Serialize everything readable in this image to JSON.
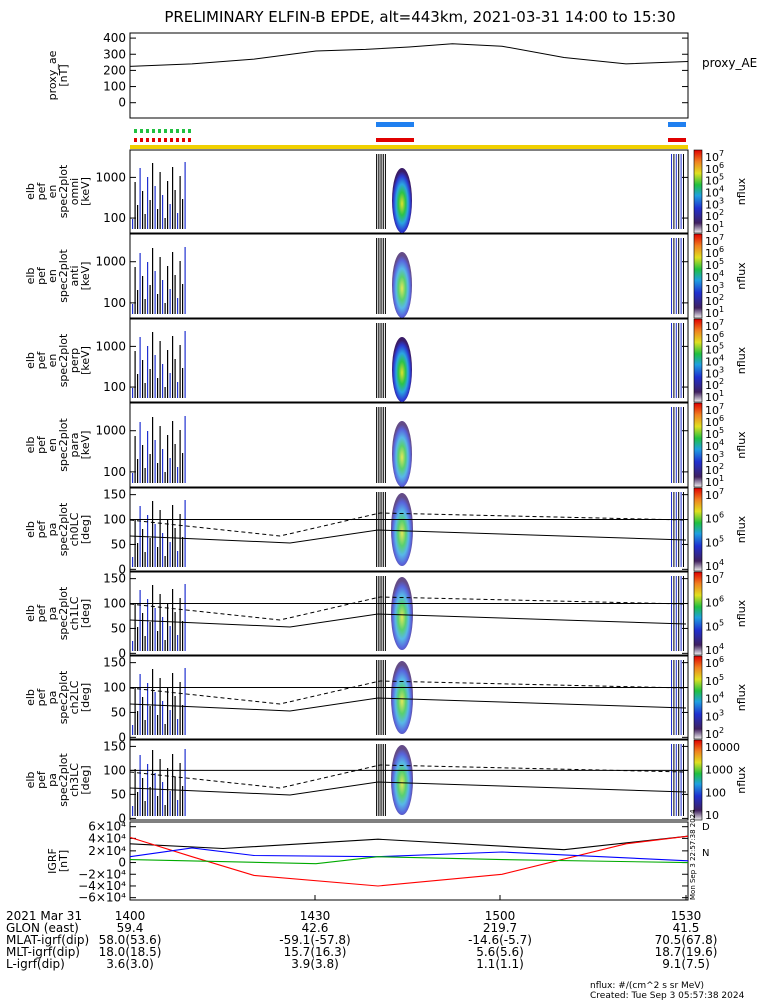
{
  "title": "PRELIMINARY ELFIN-B EPDE, alt=443km, 2021-03-31 14:00 to 15:30",
  "panels": [
    {
      "key": "proxy_ae",
      "ylabel": [
        "proxy_ae",
        "[nT]"
      ],
      "yticks": [
        "400",
        "300",
        "200",
        "100",
        "0"
      ],
      "side_label": "proxy_AE"
    },
    {
      "key": "en_omni",
      "ylabel": [
        "elb",
        "pef",
        "en",
        "spec2plot",
        "omni",
        "[keV]"
      ],
      "yticks": [
        "1000",
        "100"
      ],
      "cb_unit": "nflux",
      "cb_ticks": [
        "10",
        "10",
        "10",
        "10",
        "10",
        "10",
        "10"
      ],
      "cb_exps": [
        "7",
        "6",
        "5",
        "4",
        "3",
        "2",
        "1"
      ]
    },
    {
      "key": "en_anti",
      "ylabel": [
        "elb",
        "pef",
        "en",
        "spec2plot",
        "anti",
        "[keV]"
      ],
      "yticks": [
        "1000",
        "100"
      ],
      "cb_unit": "nflux",
      "cb_ticks": [
        "10",
        "10",
        "10",
        "10",
        "10",
        "10",
        "10"
      ],
      "cb_exps": [
        "7",
        "6",
        "5",
        "4",
        "3",
        "2",
        "1"
      ]
    },
    {
      "key": "en_perp",
      "ylabel": [
        "elb",
        "pef",
        "en",
        "spec2plot",
        "perp",
        "[keV]"
      ],
      "yticks": [
        "1000",
        "100"
      ],
      "cb_unit": "nflux",
      "cb_ticks": [
        "10",
        "10",
        "10",
        "10",
        "10",
        "10",
        "10"
      ],
      "cb_exps": [
        "7",
        "6",
        "5",
        "4",
        "3",
        "2",
        "1"
      ]
    },
    {
      "key": "en_para",
      "ylabel": [
        "elb",
        "pef",
        "en",
        "spec2plot",
        "para",
        "[keV]"
      ],
      "yticks": [
        "1000",
        "100"
      ],
      "cb_unit": "nflux",
      "cb_ticks": [
        "10",
        "10",
        "10",
        "10",
        "10",
        "10",
        "10"
      ],
      "cb_exps": [
        "7",
        "6",
        "5",
        "4",
        "3",
        "2",
        "1"
      ]
    },
    {
      "key": "pa_ch0",
      "ylabel": [
        "elb",
        "pef",
        "pa",
        "spec2plot",
        "ch0LC",
        "[deg]"
      ],
      "yticks": [
        "150",
        "100",
        "50",
        "0"
      ],
      "cb_unit": "nflux",
      "cb_ticks": [
        "10",
        "10",
        "10",
        "10"
      ],
      "cb_exps": [
        "7",
        "6",
        "5",
        "4"
      ]
    },
    {
      "key": "pa_ch1",
      "ylabel": [
        "elb",
        "pef",
        "pa",
        "spec2plot",
        "ch1LC",
        "[deg]"
      ],
      "yticks": [
        "150",
        "100",
        "50",
        "0"
      ],
      "cb_unit": "nflux",
      "cb_ticks": [
        "10",
        "10",
        "10",
        "10"
      ],
      "cb_exps": [
        "7",
        "6",
        "5",
        "4"
      ]
    },
    {
      "key": "pa_ch2",
      "ylabel": [
        "elb",
        "pef",
        "pa",
        "spec2plot",
        "ch2LC",
        "[deg]"
      ],
      "yticks": [
        "150",
        "100",
        "50",
        "0"
      ],
      "cb_unit": "nflux",
      "cb_ticks": [
        "10",
        "10",
        "10",
        "10",
        "10"
      ],
      "cb_exps": [
        "6",
        "5",
        "4",
        "3",
        "2"
      ]
    },
    {
      "key": "pa_ch3",
      "ylabel": [
        "elb",
        "pef",
        "pa",
        "spec2plot",
        "ch3LC",
        "[deg]"
      ],
      "yticks": [
        "150",
        "100",
        "50",
        "0"
      ],
      "cb_unit": "nflux",
      "cb_ticks": [
        "10000",
        "1000",
        "100",
        "10"
      ],
      "cb_exps": [
        "",
        "",
        "",
        ""
      ]
    },
    {
      "key": "igrf",
      "ylabel": [
        "IGRF",
        "[nT]"
      ],
      "yticks": [
        "6×10⁴",
        "4×10⁴",
        "2×10⁴",
        "0",
        "−2×10⁴",
        "−4×10⁴",
        "−6×10⁴"
      ],
      "legend": [
        "D",
        "N"
      ]
    }
  ],
  "footer": {
    "rows": [
      {
        "label": "2021 Mar 31",
        "values": [
          "1400",
          "1430",
          "1500",
          "1530"
        ]
      },
      {
        "label": "GLON (east)",
        "values": [
          "59.4",
          "42.6",
          "219.7",
          "41.5"
        ]
      },
      {
        "label": "MLAT-igrf(dip)",
        "values": [
          "58.0(53.6)",
          "-59.1(-57.8)",
          "-14.6(-5.7)",
          "70.5(67.8)"
        ]
      },
      {
        "label": "MLT-igrf(dip)",
        "values": [
          "18.0(18.5)",
          "15.7(16.3)",
          "5.6(5.6)",
          "18.7(19.6)"
        ]
      },
      {
        "label": "L-igrf(dip)",
        "values": [
          "3.6(3.0)",
          "3.9(3.8)",
          "1.1(1.1)",
          "9.1(7.5)"
        ]
      }
    ],
    "units_note": "nflux: #/(cm^2 s sr MeV)",
    "created": "Created: Tue Sep  3 05:57:38 2024",
    "side_stamp": "Mon Sep  3 22:57:38 2024"
  },
  "chart_data": {
    "type": "line",
    "title": "PRELIMINARY ELFIN-B EPDE, alt=443km, 2021-03-31 14:00 to 15:30",
    "x_ticks": [
      "1400",
      "1430",
      "1500",
      "1530"
    ],
    "proxy_ae": {
      "x": [
        "14:00",
        "14:10",
        "14:20",
        "14:30",
        "14:38",
        "14:45",
        "14:52",
        "15:00",
        "15:10",
        "15:20",
        "15:30"
      ],
      "y": [
        225,
        240,
        270,
        320,
        330,
        345,
        365,
        350,
        280,
        240,
        255
      ],
      "ylim": [
        0,
        400
      ]
    },
    "igrf": {
      "ylim": [
        -60000,
        60000
      ],
      "series": [
        {
          "color": "#000000",
          "x": [
            "14:00",
            "14:15",
            "14:40",
            "15:10",
            "15:30"
          ],
          "y": [
            32000,
            24000,
            40000,
            22000,
            45000
          ]
        },
        {
          "color": "#ff0000",
          "x": [
            "14:00",
            "14:10",
            "14:20",
            "14:40",
            "15:00",
            "15:20",
            "15:30"
          ],
          "y": [
            43000,
            10000,
            -22000,
            -40000,
            -20000,
            32000,
            45000
          ]
        },
        {
          "color": "#0000ff",
          "x": [
            "14:00",
            "14:10",
            "14:20",
            "14:40",
            "15:00",
            "15:30"
          ],
          "y": [
            10000,
            25000,
            12000,
            10000,
            18000,
            3000
          ]
        },
        {
          "color": "#00aa00",
          "x": [
            "14:00",
            "14:30",
            "14:40",
            "15:00",
            "15:30"
          ],
          "y": [
            5000,
            -2000,
            10000,
            5000,
            0
          ]
        }
      ]
    }
  }
}
